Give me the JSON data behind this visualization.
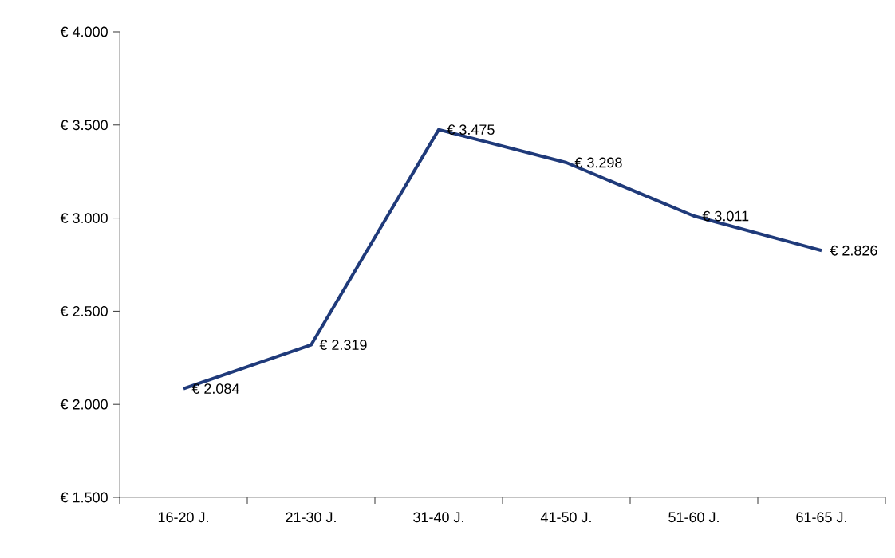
{
  "chart_data": {
    "type": "line",
    "categories": [
      "16-20 J.",
      "21-30 J.",
      "31-40 J.",
      "41-50 J.",
      "51-60 J.",
      "61-65 J."
    ],
    "series": [
      {
        "color": "#1f3a7a",
        "values": [
          2084,
          2319,
          3475,
          3298,
          3011,
          2826
        ],
        "value_labels": [
          "€ 2.084",
          "€ 2.319",
          "€ 3.475",
          "€ 3.298",
          "€ 3.011",
          "€ 2.826"
        ]
      }
    ],
    "ylim": [
      1500,
      4000
    ],
    "yticks": [
      {
        "value": 1500,
        "label": "€ 1.500"
      },
      {
        "value": 2000,
        "label": "€ 2.000"
      },
      {
        "value": 2500,
        "label": "€ 2.500"
      },
      {
        "value": 3000,
        "label": "€ 3.000"
      },
      {
        "value": 3500,
        "label": "€ 3.500"
      },
      {
        "value": 4000,
        "label": "€ 4.000"
      }
    ],
    "grid": false,
    "marker": "none",
    "line_style": "solid"
  }
}
